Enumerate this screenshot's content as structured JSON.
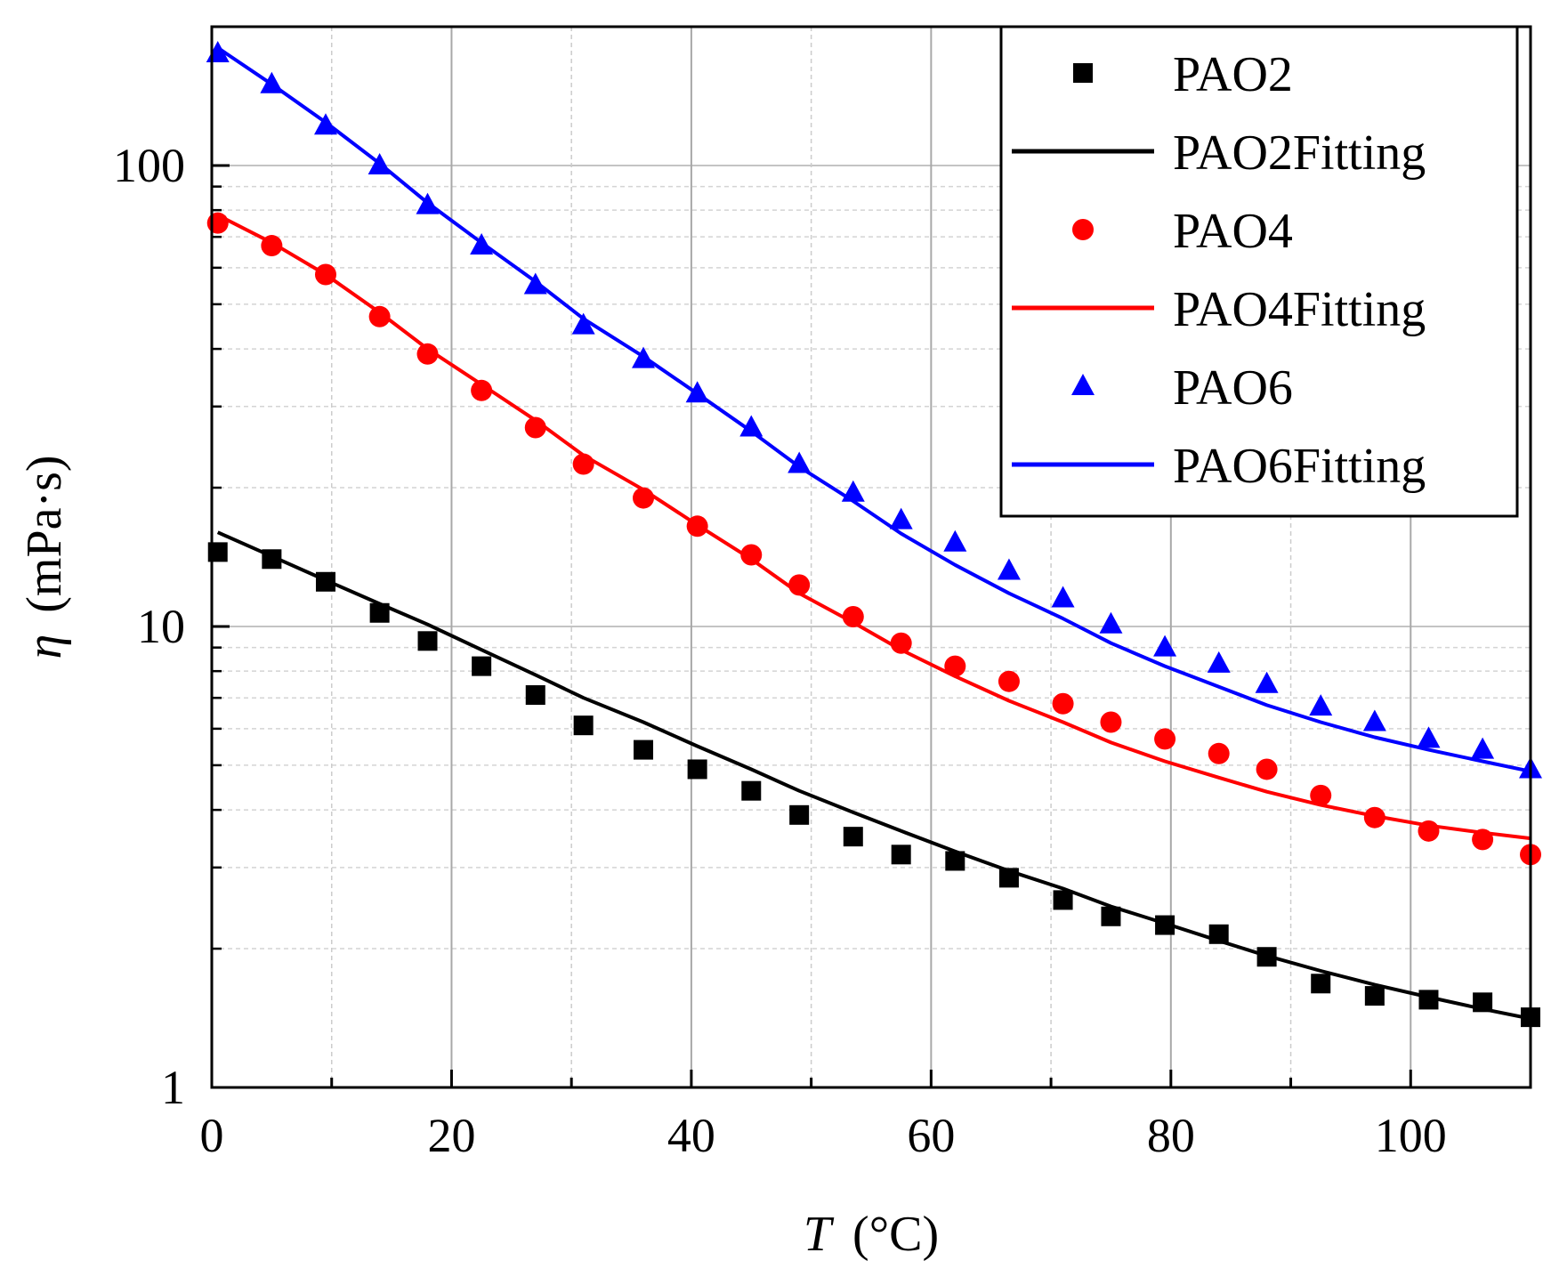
{
  "chart_data": {
    "type": "scatter",
    "title": "",
    "xlabel": {
      "symbol": "T",
      "unit": "(°C)"
    },
    "ylabel": {
      "symbol": "η",
      "unit": "(mPa·s)"
    },
    "xlim": [
      0,
      110
    ],
    "ylim": [
      1,
      200
    ],
    "yscale": "log",
    "xticks": [
      "0",
      "20",
      "40",
      "60",
      "80",
      "100"
    ],
    "yticks": [
      "1",
      "10",
      "100"
    ],
    "grid": true,
    "legend_position": "top-right",
    "x": [
      0.5,
      5,
      9.5,
      14,
      18,
      22.5,
      27,
      31,
      36,
      40.5,
      45,
      49,
      53.5,
      57.5,
      62,
      66.5,
      71,
      75,
      79.5,
      84,
      88,
      92.5,
      97,
      101.5,
      106,
      110
    ],
    "series": [
      {
        "name": "PAO2",
        "fit_name": "PAO2Fitting",
        "color": "#000000",
        "marker": "square",
        "values": [
          14.5,
          14.0,
          12.5,
          10.7,
          9.3,
          8.2,
          7.1,
          6.1,
          5.4,
          4.9,
          4.4,
          3.9,
          3.5,
          3.2,
          3.1,
          2.85,
          2.55,
          2.35,
          2.25,
          2.15,
          1.92,
          1.68,
          1.58,
          1.55,
          1.53,
          1.42
        ],
        "fit": [
          16.0,
          14.2,
          12.6,
          11.2,
          10.1,
          8.9,
          7.85,
          7.0,
          6.2,
          5.5,
          4.9,
          4.4,
          3.95,
          3.6,
          3.25,
          2.95,
          2.7,
          2.47,
          2.27,
          2.08,
          1.93,
          1.79,
          1.67,
          1.57,
          1.48,
          1.41
        ]
      },
      {
        "name": "PAO4",
        "fit_name": "PAO4Fitting",
        "color": "#ff0000",
        "marker": "circle",
        "values": [
          75,
          67,
          58,
          47,
          39,
          32.5,
          27,
          22.5,
          19,
          16.5,
          14.3,
          12.3,
          10.5,
          9.2,
          8.2,
          7.6,
          6.8,
          6.2,
          5.7,
          5.3,
          4.9,
          4.3,
          3.85,
          3.6,
          3.45,
          3.2
        ],
        "fit": [
          78,
          68,
          58,
          48,
          40,
          33.5,
          28,
          23.5,
          19.8,
          16.6,
          14.0,
          11.8,
          10.2,
          8.9,
          7.8,
          6.9,
          6.2,
          5.6,
          5.1,
          4.7,
          4.38,
          4.1,
          3.88,
          3.7,
          3.57,
          3.47
        ]
      },
      {
        "name": "PAO6",
        "fit_name": "PAO6Fitting",
        "color": "#0000ff",
        "marker": "triangle",
        "values": [
          175,
          150,
          122,
          100,
          82,
          67,
          55,
          45,
          38,
          32,
          27,
          22.5,
          19.5,
          17,
          15.2,
          13.2,
          11.5,
          10.1,
          9.0,
          8.3,
          7.5,
          6.7,
          6.2,
          5.7,
          5.4,
          4.9
        ],
        "fit": [
          180,
          150,
          124,
          101,
          83,
          68,
          56,
          46.5,
          38.5,
          32,
          26.5,
          22.2,
          18.7,
          15.9,
          13.6,
          11.8,
          10.4,
          9.2,
          8.2,
          7.4,
          6.75,
          6.2,
          5.75,
          5.4,
          5.1,
          4.85
        ]
      }
    ]
  }
}
